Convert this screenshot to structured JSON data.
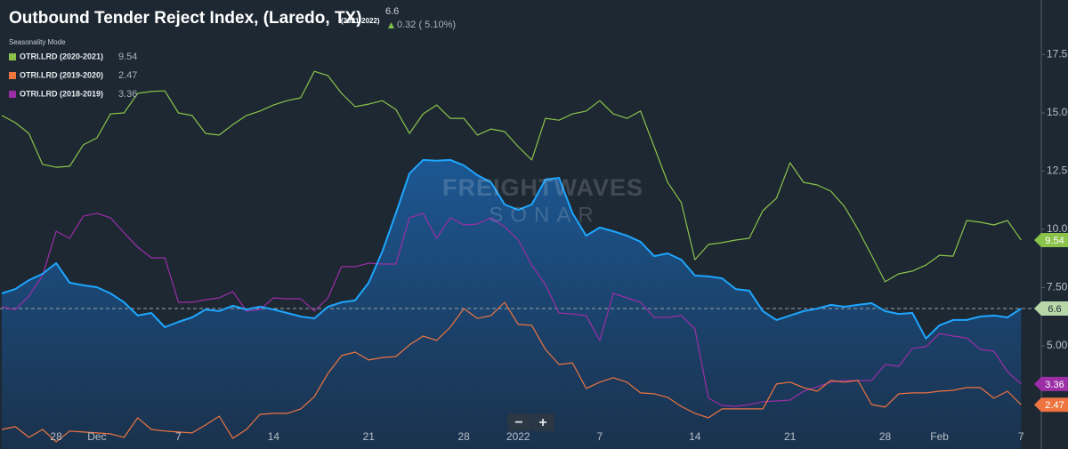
{
  "chart_data": {
    "type": "line",
    "title": "Outbound Tender Reject Index, (Laredo, TX)",
    "subtitle": "(2021-2022)",
    "change": "0.32 ( 5.10%)",
    "legend_title": "Seasonality Mode",
    "watermark": [
      "FREIGHTWAVES",
      "SONAR"
    ],
    "controls": [
      "−",
      "+"
    ],
    "categories": [
      null,
      null,
      null,
      null,
      "28",
      null,
      null,
      "Dec",
      null,
      null,
      null,
      null,
      null,
      "7",
      null,
      null,
      null,
      null,
      null,
      null,
      "14",
      null,
      null,
      null,
      null,
      null,
      null,
      "21",
      null,
      null,
      null,
      null,
      null,
      null,
      "28",
      null,
      null,
      null,
      "2022",
      null,
      null,
      null,
      null,
      null,
      "7",
      null,
      null,
      null,
      null,
      null,
      null,
      "14",
      null,
      null,
      null,
      null,
      null,
      null,
      "21",
      null,
      null,
      null,
      null,
      null,
      null,
      "28",
      null,
      null,
      null,
      "Feb",
      null,
      null,
      null,
      null,
      null,
      "7"
    ],
    "series": [
      {
        "color": "#1ea7ff",
        "values": [
          7.25,
          7.44,
          7.82,
          8.09,
          8.55,
          7.71,
          7.6,
          7.52,
          7.25,
          6.87,
          6.3,
          6.41,
          5.8,
          6.03,
          6.22,
          6.56,
          6.49,
          6.72,
          6.56,
          6.68,
          6.56,
          6.41,
          6.26,
          6.18,
          6.68,
          6.87,
          6.95,
          7.71,
          9.05,
          10.69,
          12.4,
          12.98,
          12.95,
          12.98,
          12.75,
          12.33,
          12.02,
          11.07,
          10.84,
          11.07,
          12.14,
          12.21,
          10.69,
          9.73,
          10.08,
          9.92,
          9.73,
          9.47,
          8.85,
          8.97,
          8.7,
          8.02,
          7.98,
          7.9,
          7.44,
          7.37,
          6.49,
          6.11,
          6.3,
          6.49,
          6.6,
          6.76,
          6.68,
          6.76,
          6.83,
          6.49,
          6.37,
          6.41,
          5.31,
          5.88,
          6.11,
          6.11,
          6.26,
          6.3,
          6.22,
          6.6
        ]
      },
      {
        "name": "OTRI.LRD (2020-2021)",
        "color": "#8bc34a",
        "values": [
          14.89,
          14.58,
          14.12,
          12.79,
          12.67,
          12.71,
          13.63,
          13.93,
          14.96,
          15.0,
          15.84,
          15.92,
          15.95,
          15.0,
          14.89,
          14.12,
          14.05,
          14.5,
          14.89,
          15.08,
          15.34,
          15.53,
          15.65,
          16.79,
          16.6,
          15.84,
          15.27,
          15.38,
          15.53,
          15.15,
          14.12,
          14.96,
          15.34,
          14.77,
          14.77,
          14.05,
          14.31,
          14.2,
          13.55,
          12.98,
          14.77,
          14.69,
          14.96,
          15.08,
          15.53,
          14.96,
          14.77,
          15.08,
          13.55,
          12.02,
          11.15,
          8.7,
          9.35,
          9.43,
          9.54,
          9.62,
          10.8,
          11.34,
          12.86,
          12.02,
          11.91,
          11.64,
          10.99,
          10.0,
          8.89,
          7.75,
          8.09,
          8.21,
          8.47,
          8.89,
          8.85,
          10.38,
          10.31,
          10.19,
          10.38,
          9.54
        ]
      },
      {
        "name": "OTRI.LRD (2019-2020)",
        "color": "#ee7440",
        "values": [
          1.41,
          1.53,
          1.07,
          1.41,
          0.88,
          1.34,
          1.3,
          1.26,
          1.22,
          1.07,
          1.91,
          1.41,
          1.34,
          1.3,
          1.26,
          1.6,
          1.98,
          1.03,
          1.41,
          2.06,
          2.1,
          2.1,
          2.29,
          2.82,
          3.82,
          4.58,
          4.73,
          4.39,
          4.5,
          4.54,
          5.04,
          5.42,
          5.23,
          5.8,
          6.6,
          6.18,
          6.3,
          6.87,
          5.92,
          5.88,
          4.85,
          4.2,
          4.27,
          3.17,
          3.44,
          3.63,
          3.44,
          2.98,
          2.94,
          2.79,
          2.4,
          2.1,
          1.91,
          2.29,
          2.29,
          2.29,
          2.29,
          3.36,
          3.44,
          3.21,
          3.05,
          3.51,
          3.44,
          3.51,
          2.48,
          2.37,
          2.94,
          2.98,
          2.98,
          3.05,
          3.09,
          3.21,
          3.21,
          2.75,
          3.05,
          2.47
        ]
      },
      {
        "name": "OTRI.LRD (2018-2019)",
        "color": "#9c2ea6",
        "values": [
          6.68,
          6.56,
          7.14,
          8.02,
          9.92,
          9.62,
          10.57,
          10.69,
          10.5,
          9.85,
          9.24,
          8.78,
          8.78,
          6.87,
          6.87,
          6.98,
          7.06,
          7.33,
          6.49,
          6.56,
          7.06,
          7.02,
          7.02,
          6.49,
          7.06,
          8.4,
          8.4,
          8.55,
          8.51,
          8.51,
          10.5,
          10.69,
          9.62,
          10.5,
          10.19,
          10.23,
          10.5,
          10.11,
          9.54,
          8.47,
          7.63,
          6.41,
          6.37,
          6.3,
          5.23,
          7.25,
          7.06,
          6.87,
          6.22,
          6.22,
          6.3,
          5.73,
          2.75,
          2.44,
          2.4,
          2.48,
          2.6,
          2.63,
          2.67,
          3.05,
          3.24,
          3.44,
          3.51,
          3.51,
          3.51,
          4.2,
          4.12,
          4.89,
          4.96,
          5.53,
          5.42,
          5.34,
          4.85,
          4.77,
          3.89,
          3.36
        ]
      }
    ],
    "ylim": [
      0.57,
      19.85
    ],
    "yticks": [
      {
        "value": 5,
        "label": "5.00"
      },
      {
        "value": 7.5,
        "label": "7.50"
      },
      {
        "value": 10,
        "label": "10.00"
      },
      {
        "value": 12.5,
        "label": "12.50"
      },
      {
        "value": 15,
        "label": "15.00"
      },
      {
        "value": 17.5,
        "label": "17.50"
      }
    ],
    "grid": false
  }
}
